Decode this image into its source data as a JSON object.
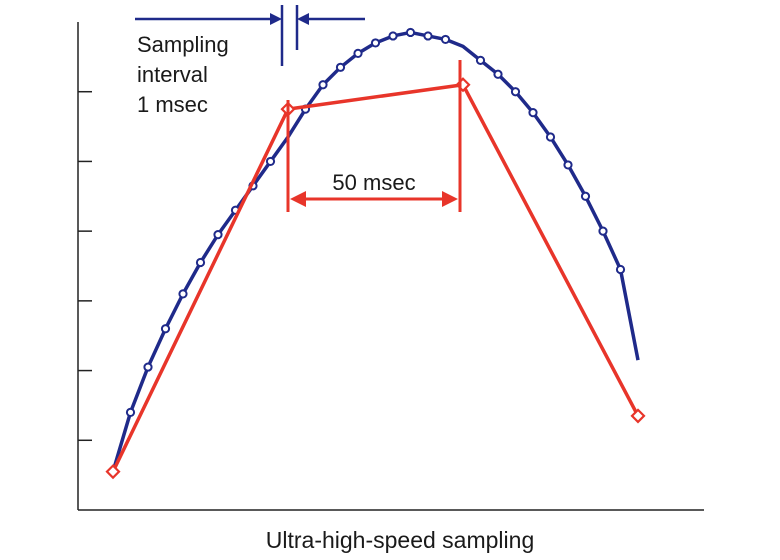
{
  "caption": "Ultra-high-speed sampling",
  "annotations": {
    "sampling_line1": "Sampling",
    "sampling_line2": "interval",
    "sampling_line3": "1 msec",
    "interval_label": "50 msec"
  },
  "colors": {
    "fine_curve": "#1f2a8a",
    "coarse_curve": "#e8352a",
    "axis": "#222222",
    "text": "#1a1a1a"
  },
  "chart_data": {
    "type": "line",
    "title": "",
    "xlabel": "Ultra-high-speed sampling",
    "ylabel": "",
    "xlim": [
      0,
      160
    ],
    "ylim": [
      0,
      7
    ],
    "grid": false,
    "yticks": [
      1,
      2,
      3,
      4,
      5,
      6
    ],
    "series": [
      {
        "name": "1 msec sampling",
        "x": [
          0,
          5,
          10,
          15,
          20,
          25,
          30,
          35,
          40,
          45,
          50,
          55,
          60,
          65,
          70,
          75,
          80,
          85,
          90,
          95,
          100,
          105,
          110,
          115,
          120,
          125,
          130,
          135,
          140,
          145,
          150
        ],
        "y": [
          0.55,
          1.4,
          2.05,
          2.6,
          3.1,
          3.55,
          3.95,
          4.3,
          4.65,
          5.0,
          5.35,
          5.75,
          6.1,
          6.35,
          6.55,
          6.7,
          6.8,
          6.85,
          6.8,
          6.75,
          6.65,
          6.45,
          6.25,
          6.0,
          5.7,
          5.35,
          4.95,
          4.5,
          4.0,
          3.45,
          2.15
        ]
      },
      {
        "name": "50 msec sampling",
        "x": [
          0,
          50,
          100,
          150
        ],
        "y": [
          0.55,
          5.75,
          6.1,
          1.35
        ]
      }
    ]
  }
}
